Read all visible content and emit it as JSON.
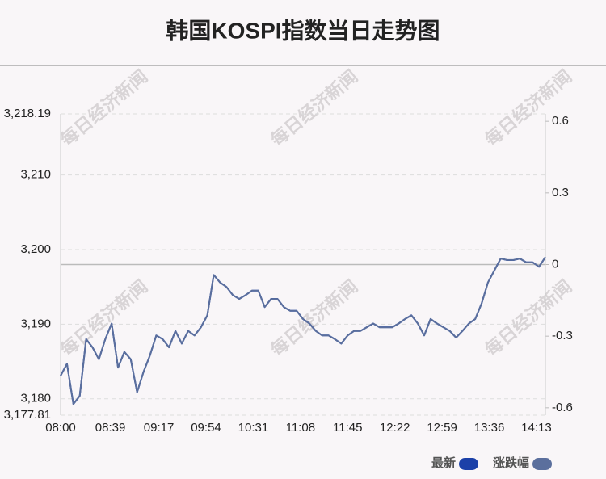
{
  "chart_data": {
    "type": "line",
    "title": "韩国KOSPI指数当日走势图",
    "watermark": "每日经济新闻",
    "x": [
      "08:00",
      "08:05",
      "08:10",
      "08:15",
      "08:20",
      "08:25",
      "08:30",
      "08:35",
      "08:40",
      "08:45",
      "08:50",
      "08:55",
      "09:00",
      "09:05",
      "09:10",
      "09:15",
      "09:20",
      "09:25",
      "09:30",
      "09:35",
      "09:40",
      "09:45",
      "09:50",
      "09:55",
      "10:00",
      "10:05",
      "10:10",
      "10:15",
      "10:20",
      "10:25",
      "10:30",
      "10:35",
      "10:40",
      "10:45",
      "10:50",
      "10:55",
      "11:00",
      "11:05",
      "11:10",
      "11:15",
      "11:20",
      "11:25",
      "11:30",
      "11:35",
      "11:40",
      "11:45",
      "11:50",
      "11:55",
      "12:00",
      "12:05",
      "12:10",
      "12:15",
      "12:20",
      "12:25",
      "12:30",
      "12:35",
      "12:40",
      "12:45",
      "12:50",
      "12:55",
      "13:00",
      "13:05",
      "13:10",
      "13:15",
      "13:20",
      "13:25",
      "13:30",
      "13:35",
      "13:40",
      "13:45",
      "13:50",
      "13:55",
      "14:00",
      "14:05",
      "14:10",
      "14:15",
      "14:20"
    ],
    "xlim": [
      "08:00",
      "14:20"
    ],
    "xticks": [
      "08:00",
      "08:39",
      "09:17",
      "09:54",
      "10:31",
      "11:08",
      "11:45",
      "12:22",
      "12:59",
      "13:36",
      "14:13"
    ],
    "ylim": [
      3177.81,
      3218.19
    ],
    "yticks": [
      {
        "value": 3177.81,
        "label": "3,177.81"
      },
      {
        "value": 3180,
        "label": "3,180"
      },
      {
        "value": 3190,
        "label": "3,190"
      },
      {
        "value": 3200,
        "label": "3,200"
      },
      {
        "value": 3210,
        "label": "3,210"
      },
      {
        "value": 3218.19,
        "label": "3,218.19"
      }
    ],
    "y2lim": [
      -0.631,
      0.631
    ],
    "y2ticks": [
      0.6,
      0.3,
      0,
      -0.3,
      -0.6
    ],
    "grid": true,
    "series": [
      {
        "name": "最新",
        "color": "#1b40a8",
        "values": [
          3183.1,
          3184.7,
          3179.3,
          3180.4,
          3188.0,
          3186.9,
          3185.3,
          3188.0,
          3190.1,
          3184.2,
          3186.3,
          3185.3,
          3180.9,
          3183.6,
          3185.8,
          3188.5,
          3188.0,
          3186.9,
          3189.1,
          3187.4,
          3189.1,
          3188.5,
          3189.6,
          3191.2,
          3196.6,
          3195.6,
          3195.0,
          3193.9,
          3193.4,
          3193.9,
          3194.5,
          3194.5,
          3192.3,
          3193.4,
          3193.4,
          3192.3,
          3191.8,
          3191.8,
          3190.7,
          3190.1,
          3189.1,
          3188.5,
          3188.5,
          3188.0,
          3187.4,
          3188.5,
          3189.1,
          3189.1,
          3189.6,
          3190.1,
          3189.6,
          3189.6,
          3189.6,
          3190.1,
          3190.7,
          3191.2,
          3190.1,
          3188.5,
          3190.7,
          3190.1,
          3189.6,
          3189.1,
          3188.2,
          3189.1,
          3190.1,
          3190.7,
          3192.8,
          3195.6,
          3197.2,
          3198.8,
          3198.6,
          3198.6,
          3198.8,
          3198.3,
          3198.3,
          3197.7,
          3199.0
        ]
      },
      {
        "name": "涨跌幅",
        "color": "#5b6f9d",
        "axis": "y2",
        "values": [
          -0.466,
          -0.416,
          -0.585,
          -0.55,
          -0.313,
          -0.347,
          -0.397,
          -0.313,
          -0.247,
          -0.432,
          -0.366,
          -0.397,
          -0.535,
          -0.45,
          -0.381,
          -0.297,
          -0.313,
          -0.347,
          -0.278,
          -0.331,
          -0.278,
          -0.297,
          -0.263,
          -0.213,
          -0.044,
          -0.075,
          -0.094,
          -0.128,
          -0.144,
          -0.128,
          -0.109,
          -0.109,
          -0.178,
          -0.144,
          -0.144,
          -0.178,
          -0.194,
          -0.194,
          -0.228,
          -0.247,
          -0.278,
          -0.297,
          -0.297,
          -0.313,
          -0.331,
          -0.297,
          -0.278,
          -0.278,
          -0.263,
          -0.247,
          -0.263,
          -0.263,
          -0.263,
          -0.247,
          -0.228,
          -0.213,
          -0.247,
          -0.297,
          -0.228,
          -0.247,
          -0.263,
          -0.278,
          -0.306,
          -0.278,
          -0.247,
          -0.228,
          -0.163,
          -0.075,
          -0.025,
          0.025,
          0.019,
          0.019,
          0.025,
          0.009,
          0.009,
          -0.009,
          0.031
        ]
      }
    ]
  }
}
